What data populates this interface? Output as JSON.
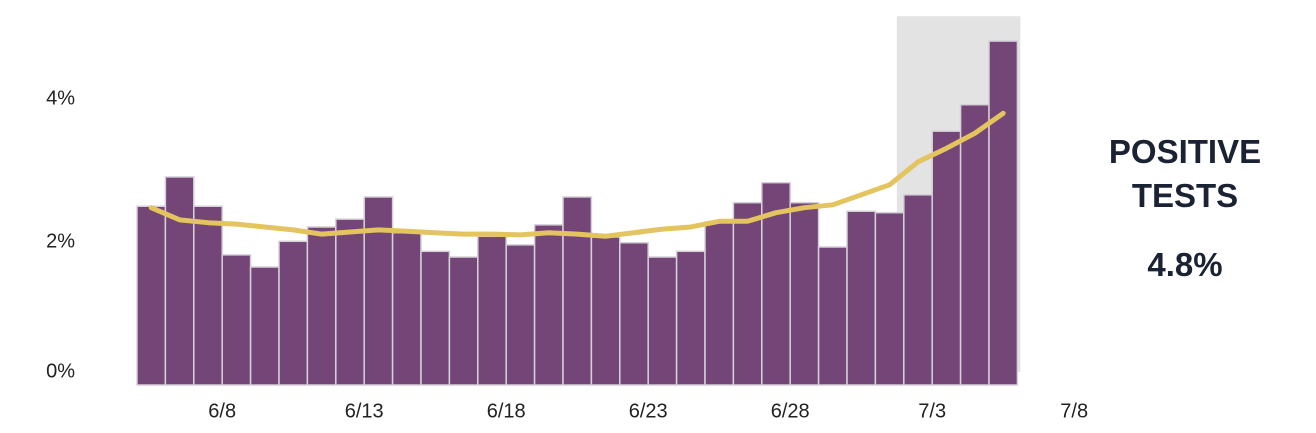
{
  "chart_data": {
    "type": "bar",
    "categories": [
      null,
      null,
      null,
      "6/8",
      null,
      null,
      null,
      null,
      "6/13",
      null,
      null,
      null,
      null,
      "6/18",
      null,
      null,
      null,
      null,
      "6/23",
      null,
      null,
      null,
      null,
      "6/28",
      null,
      null,
      null,
      null,
      "7/3",
      null,
      null,
      null,
      null,
      "7/8"
    ],
    "series": [
      {
        "color": "#744577",
        "values": [
          2.5,
          2.91,
          2.5,
          1.82,
          1.65,
          2.01,
          2.21,
          2.32,
          2.63,
          2.13,
          1.87,
          1.79,
          2.08,
          1.96,
          2.24,
          2.63,
          2.07,
          1.99,
          1.79,
          1.87,
          2.28,
          2.55,
          2.83,
          2.55,
          1.93,
          2.43,
          2.41,
          2.66,
          3.55,
          3.92,
          4.81,
          null,
          null,
          null
        ]
      },
      {
        "type": "line",
        "color": "#e3c45e",
        "values": [
          2.48,
          2.31,
          2.27,
          2.25,
          2.21,
          2.17,
          2.11,
          2.14,
          2.17,
          2.15,
          2.13,
          2.11,
          2.11,
          2.1,
          2.13,
          2.11,
          2.08,
          2.13,
          2.18,
          2.21,
          2.29,
          2.29,
          2.41,
          2.48,
          2.52,
          2.66,
          2.8,
          3.12,
          3.31,
          3.52,
          3.8,
          null,
          null,
          null
        ]
      }
    ],
    "ylim": [
      0,
      5.2
    ],
    "yticks": [
      {
        "value": 0,
        "label": "0%"
      },
      {
        "value": 2,
        "label": "2%"
      },
      {
        "value": 4,
        "label": "4%"
      }
    ],
    "highlight": {
      "from": "7/2",
      "to": "7/5",
      "color": "#e3e3e3"
    },
    "kpi_label": "POSITIVE TESTS",
    "kpi_value": "4.8%"
  }
}
